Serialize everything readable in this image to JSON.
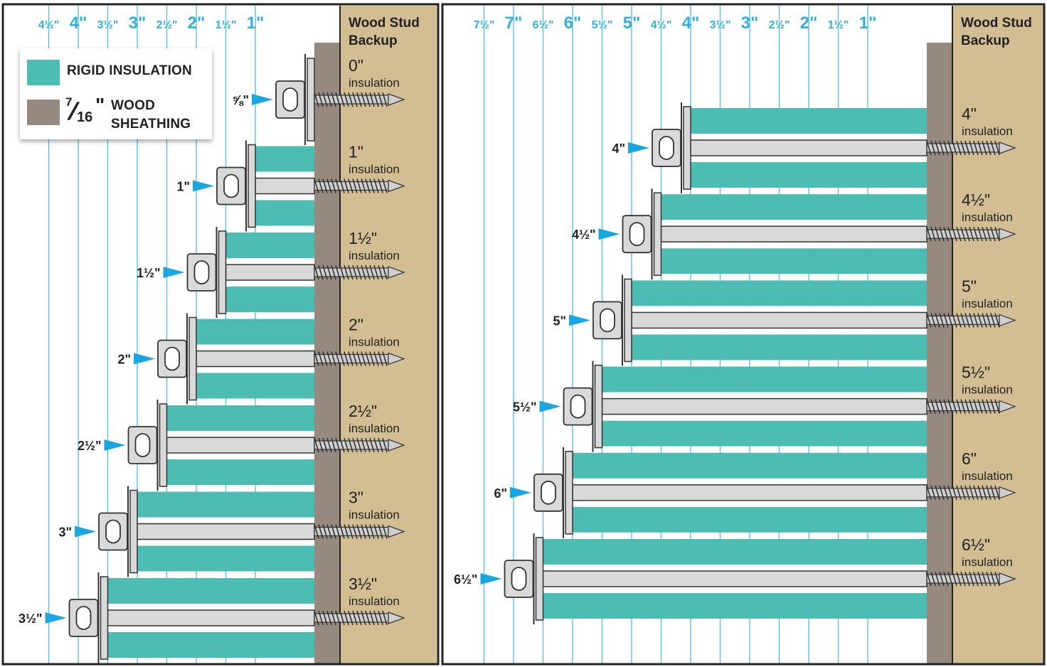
{
  "colors": {
    "insulation": "#4dbdb4",
    "sheathing": "#958a7d",
    "stud": "#d3be94",
    "guide_lines": "#33b0e0",
    "pointer": "#1aa6e0",
    "screw_metal": "#d9d9d9",
    "outline": "#222222"
  },
  "legend": {
    "rigid_label": "RIGID INSULATION",
    "sheathing_numerator": "7",
    "sheathing_denominator": "16",
    "sheathing_quote": "\"",
    "sheathing_label_line1": "WOOD",
    "sheathing_label_line2": "SHEATHING"
  },
  "left_panel": {
    "stud_label": "Wood Stud Backup",
    "scale_labels": [
      "4½\"",
      "4\"",
      "3½\"",
      "3\"",
      "2½\"",
      "2\"",
      "1½\"",
      "1\""
    ],
    "fasteners": [
      {
        "thickness_label": "0\"",
        "insulation_word": "insulation",
        "pointer_label": "⅝\"",
        "insulation_in": 0
      },
      {
        "thickness_label": "1\"",
        "insulation_word": "insulation",
        "pointer_label": "1\"",
        "insulation_in": 1
      },
      {
        "thickness_label": "1½\"",
        "insulation_word": "insulation",
        "pointer_label": "1½\"",
        "insulation_in": 1.5
      },
      {
        "thickness_label": "2\"",
        "insulation_word": "insulation",
        "pointer_label": "2\"",
        "insulation_in": 2
      },
      {
        "thickness_label": "2½\"",
        "insulation_word": "insulation",
        "pointer_label": "2½\"",
        "insulation_in": 2.5
      },
      {
        "thickness_label": "3\"",
        "insulation_word": "insulation",
        "pointer_label": "3\"",
        "insulation_in": 3
      },
      {
        "thickness_label": "3½\"",
        "insulation_word": "insulation",
        "pointer_label": "3½\"",
        "insulation_in": 3.5
      }
    ]
  },
  "right_panel": {
    "stud_label": "Wood Stud Backup",
    "scale_labels": [
      "7½\"",
      "7\"",
      "6½\"",
      "6\"",
      "5½\"",
      "5\"",
      "4½\"",
      "4\"",
      "3½\"",
      "3\"",
      "2½\"",
      "2\"",
      "1½\"",
      "1\""
    ],
    "fasteners": [
      {
        "thickness_label": "4\"",
        "insulation_word": "insulation",
        "pointer_label": "4\"",
        "insulation_in": 4
      },
      {
        "thickness_label": "4½\"",
        "insulation_word": "insulation",
        "pointer_label": "4½\"",
        "insulation_in": 4.5
      },
      {
        "thickness_label": "5\"",
        "insulation_word": "insulation",
        "pointer_label": "5\"",
        "insulation_in": 5
      },
      {
        "thickness_label": "5½\"",
        "insulation_word": "insulation",
        "pointer_label": "5½\"",
        "insulation_in": 5.5
      },
      {
        "thickness_label": "6\"",
        "insulation_word": "insulation",
        "pointer_label": "6\"",
        "insulation_in": 6
      },
      {
        "thickness_label": "6½\"",
        "insulation_word": "insulation",
        "pointer_label": "6½\"",
        "insulation_in": 6.5
      }
    ]
  }
}
